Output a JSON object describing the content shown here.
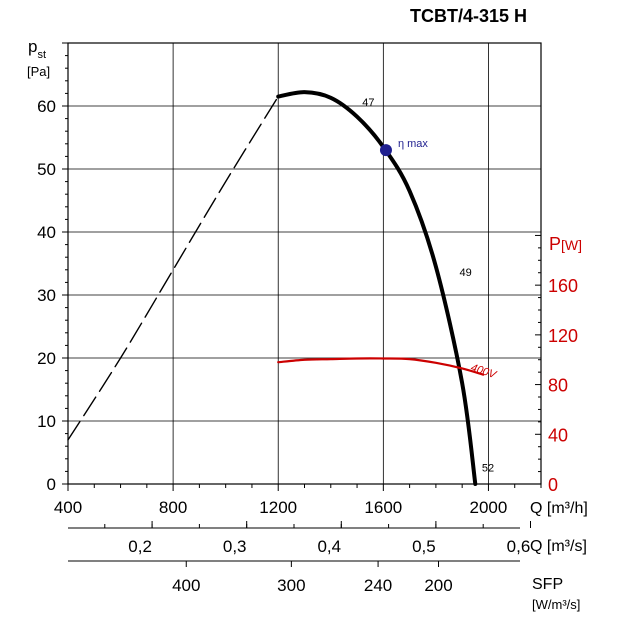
{
  "chart_data": {
    "type": "line",
    "title": "TCBT/4-315 H",
    "colors": {
      "curve": "#000000",
      "power": "#cc0000",
      "marker": "#1f1f8f",
      "grid": "#000000"
    },
    "left_axis": {
      "label": "p",
      "label_sub": "st",
      "unit": "[Pa]",
      "ylim": [
        0,
        60
      ],
      "ticks": [
        0,
        10,
        20,
        30,
        40,
        50,
        60
      ],
      "tick_labels": [
        "0",
        "10",
        "20",
        "30",
        "40",
        "50",
        "60"
      ]
    },
    "right_axis": {
      "label": "P",
      "unit": "[W]",
      "ylim": [
        0,
        160
      ],
      "ticks": [
        0,
        40,
        80,
        120,
        160
      ],
      "tick_labels": [
        "0",
        "40",
        "80",
        "120",
        "160"
      ]
    },
    "x_axis": {
      "label": "Q [m³/h]",
      "xlim": [
        400,
        2200
      ],
      "ticks": [
        400,
        800,
        1200,
        1600,
        2000
      ],
      "tick_labels": [
        "400",
        "800",
        "1200",
        "1600",
        "2000"
      ]
    },
    "x_axis_2": {
      "label": "Q [m³/s]",
      "ticks": [
        0.2,
        0.3,
        0.4,
        0.5,
        0.6
      ],
      "tick_labels": [
        "0,2",
        "0,3",
        "0,4",
        "0,5",
        "0,6"
      ]
    },
    "x_axis_3": {
      "label": "SFP",
      "unit": "[W/m³/s]",
      "ticks": [
        400,
        300,
        240,
        200
      ],
      "tick_labels": [
        "400",
        "300",
        "240",
        "200"
      ],
      "tick_positions_q": [
        850,
        1250,
        1580,
        1810
      ]
    },
    "series": [
      {
        "role": "stall",
        "style": "dashed",
        "x": [
          400,
          600,
          800,
          1000,
          1200
        ],
        "y": [
          7,
          20,
          34,
          48,
          61.5
        ]
      },
      {
        "role": "pressure",
        "style": "solid",
        "x": [
          1200,
          1300,
          1400,
          1500,
          1600,
          1700,
          1800,
          1900,
          1950
        ],
        "y": [
          61.5,
          62.2,
          61.3,
          58.3,
          53.5,
          46.5,
          34.5,
          16,
          0
        ]
      },
      {
        "name": "400V",
        "role": "power",
        "style": "solid",
        "x": [
          1200,
          1300,
          1400,
          1500,
          1600,
          1700,
          1800,
          1900,
          1980
        ],
        "y": [
          98,
          100,
          100.5,
          101,
          101,
          100.5,
          97.5,
          93,
          88
        ]
      }
    ],
    "markers": [
      {
        "label": "η max",
        "x": 1610,
        "y": 53
      }
    ],
    "annotations": [
      {
        "label": "47",
        "x": 1520,
        "y": 60
      },
      {
        "label": "49",
        "x": 1890,
        "y": 33
      },
      {
        "label": "52",
        "x": 1975,
        "y": 2
      }
    ],
    "grid": true
  }
}
